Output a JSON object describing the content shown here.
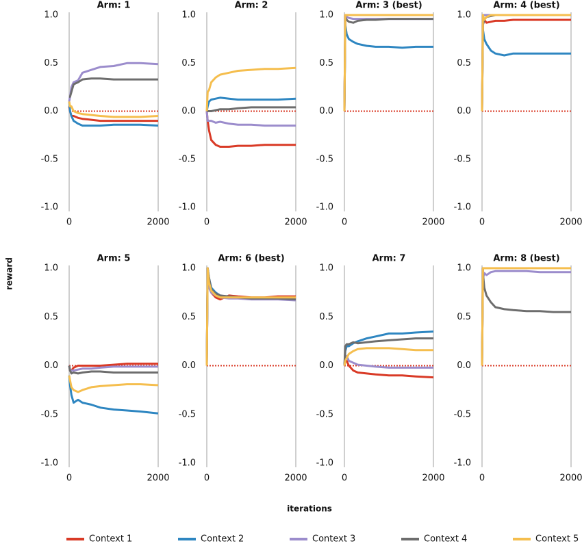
{
  "y_label": "reward",
  "x_label": "iterations",
  "chart_data": [
    {
      "type": "line",
      "title": "Arm: 1",
      "x": [
        0,
        20,
        50,
        100,
        200,
        300,
        500,
        700,
        1000,
        1300,
        1600,
        2000
      ],
      "xlim": [
        0,
        2000
      ],
      "ylim": [
        -1,
        1
      ],
      "xticks": [
        0,
        2000
      ],
      "yticks": [
        {
          "value": -1,
          "label": "-1.0"
        },
        -0.5,
        {
          "value": 0,
          "label": "0.0"
        },
        0.5,
        {
          "value": 1,
          "label": "1.0"
        }
      ],
      "grid": "x",
      "hline": 0,
      "hline_color": "#d93a26",
      "series": [
        {
          "name": "Context 1",
          "color": "#d93a26",
          "values": [
            0.05,
            0,
            -0.05,
            -0.05,
            -0.07,
            -0.08,
            -0.09,
            -0.1,
            -0.1,
            -0.1,
            -0.1,
            -0.1
          ]
        },
        {
          "name": "Context 2",
          "color": "#2e86c1",
          "values": [
            0.1,
            0,
            -0.05,
            -0.1,
            -0.13,
            -0.15,
            -0.15,
            -0.15,
            -0.14,
            -0.14,
            -0.14,
            -0.15
          ]
        },
        {
          "name": "Context 3",
          "color": "#9b8ccc",
          "values": [
            0.1,
            0.15,
            0.25,
            0.3,
            0.32,
            0.4,
            0.43,
            0.46,
            0.47,
            0.5,
            0.5,
            0.49
          ]
        },
        {
          "name": "Context 4",
          "color": "#6d6d6d",
          "values": [
            0.15,
            0.15,
            0.2,
            0.28,
            0.3,
            0.33,
            0.34,
            0.34,
            0.33,
            0.33,
            0.33,
            0.33
          ]
        },
        {
          "name": "Context 5",
          "color": "#f5be4e",
          "values": [
            0.1,
            0.05,
            0.05,
            0,
            -0.02,
            -0.03,
            -0.04,
            -0.05,
            -0.06,
            -0.06,
            -0.06,
            -0.05
          ]
        }
      ]
    },
    {
      "type": "line",
      "title": "Arm: 2",
      "x": [
        0,
        20,
        50,
        100,
        200,
        300,
        500,
        700,
        1000,
        1300,
        1600,
        2000
      ],
      "xlim": [
        0,
        2000
      ],
      "ylim": [
        -1,
        1
      ],
      "xticks": [
        0,
        2000
      ],
      "yticks": [
        {
          "value": -1,
          "label": "-1.0"
        },
        -0.5,
        {
          "value": 0,
          "label": "0.0"
        },
        0.5,
        {
          "value": 1,
          "label": "1.0"
        }
      ],
      "grid": "x",
      "hline": 0,
      "hline_color": "#d93a26",
      "series": [
        {
          "name": "Context 1",
          "color": "#d93a26",
          "values": [
            0,
            -0.1,
            -0.2,
            -0.3,
            -0.35,
            -0.37,
            -0.37,
            -0.36,
            -0.36,
            -0.35,
            -0.35,
            -0.35
          ]
        },
        {
          "name": "Context 2",
          "color": "#2e86c1",
          "values": [
            0,
            0.05,
            0.1,
            0.12,
            0.13,
            0.14,
            0.13,
            0.12,
            0.12,
            0.12,
            0.12,
            0.13
          ]
        },
        {
          "name": "Context 3",
          "color": "#9b8ccc",
          "values": [
            0,
            -0.1,
            -0.1,
            -0.1,
            -0.12,
            -0.11,
            -0.13,
            -0.14,
            -0.14,
            -0.15,
            -0.15,
            -0.15
          ]
        },
        {
          "name": "Context 4",
          "color": "#6d6d6d",
          "values": [
            0,
            0,
            0,
            0,
            0.01,
            0.02,
            0.02,
            0.03,
            0.04,
            0.04,
            0.04,
            0.04
          ]
        },
        {
          "name": "Context 5",
          "color": "#f5be4e",
          "values": [
            0,
            0.2,
            0.22,
            0.3,
            0.35,
            0.38,
            0.4,
            0.42,
            0.43,
            0.44,
            0.44,
            0.45
          ]
        }
      ]
    },
    {
      "type": "line",
      "title": "Arm: 3 (best)",
      "x": [
        0,
        20,
        50,
        100,
        200,
        300,
        500,
        700,
        1000,
        1300,
        1600,
        2000
      ],
      "xlim": [
        0,
        2000
      ],
      "ylim": [
        -1,
        1
      ],
      "xticks": [
        0,
        2000
      ],
      "yticks": [
        {
          "value": -1,
          "label": "-1.0"
        },
        -0.5,
        {
          "value": 0,
          "label": "0.0"
        },
        0.5,
        {
          "value": 1,
          "label": "1.0"
        }
      ],
      "grid": "x",
      "hline": 0,
      "hline_color": "#d93a26",
      "series": [
        {
          "name": "Context 1",
          "color": "#d93a26",
          "values": [
            0,
            1,
            1,
            1,
            1,
            1,
            1,
            1,
            1,
            1,
            1,
            1
          ]
        },
        {
          "name": "Context 2",
          "color": "#2e86c1",
          "values": [
            0,
            0.9,
            0.8,
            0.75,
            0.72,
            0.7,
            0.68,
            0.67,
            0.67,
            0.66,
            0.67,
            0.67
          ]
        },
        {
          "name": "Context 3",
          "color": "#9b8ccc",
          "values": [
            0,
            1,
            0.98,
            0.97,
            0.96,
            0.96,
            0.96,
            0.96,
            0.96,
            0.96,
            0.96,
            0.96
          ]
        },
        {
          "name": "Context 4",
          "color": "#6d6d6d",
          "values": [
            0,
            0.98,
            0.95,
            0.93,
            0.92,
            0.94,
            0.95,
            0.95,
            0.96,
            0.96,
            0.96,
            0.96
          ]
        },
        {
          "name": "Context 5",
          "color": "#f5be4e",
          "values": [
            0,
            1,
            1,
            1,
            1,
            1,
            1,
            1,
            1,
            1,
            1,
            1
          ]
        }
      ]
    },
    {
      "type": "line",
      "title": "Arm: 4 (best)",
      "x": [
        0,
        20,
        50,
        100,
        200,
        300,
        500,
        700,
        1000,
        1300,
        1600,
        2000
      ],
      "xlim": [
        0,
        2000
      ],
      "ylim": [
        -1,
        1
      ],
      "xticks": [
        0,
        2000
      ],
      "yticks": [
        {
          "value": -1,
          "label": "-1.0"
        },
        -0.5,
        {
          "value": 0,
          "label": "0.0"
        },
        0.5,
        {
          "value": 1,
          "label": "1.0"
        }
      ],
      "grid": "x",
      "hline": 0,
      "hline_color": "#d93a26",
      "series": [
        {
          "name": "Context 1",
          "color": "#d93a26",
          "values": [
            0,
            0.9,
            0.95,
            0.92,
            0.93,
            0.94,
            0.94,
            0.95,
            0.95,
            0.95,
            0.95,
            0.95
          ]
        },
        {
          "name": "Context 2",
          "color": "#2e86c1",
          "values": [
            0,
            0.85,
            0.75,
            0.7,
            0.63,
            0.6,
            0.58,
            0.6,
            0.6,
            0.6,
            0.6,
            0.6
          ]
        },
        {
          "name": "Context 3",
          "color": "#9b8ccc",
          "values": [
            0,
            1,
            1,
            1,
            1,
            1,
            1,
            1,
            1,
            1,
            1,
            1
          ]
        },
        {
          "name": "Context 4",
          "color": "#6d6d6d",
          "values": [
            0,
            0.9,
            0.95,
            0.98,
            0.99,
            1,
            1,
            1,
            1,
            1,
            1,
            1
          ]
        },
        {
          "name": "Context 5",
          "color": "#f5be4e",
          "values": [
            0,
            1,
            0.95,
            0.98,
            1,
            1,
            1,
            1,
            1,
            1,
            1,
            1
          ]
        }
      ]
    },
    {
      "type": "line",
      "title": "Arm: 5",
      "x": [
        0,
        20,
        50,
        100,
        200,
        300,
        500,
        700,
        1000,
        1300,
        1600,
        2000
      ],
      "xlim": [
        0,
        2000
      ],
      "ylim": [
        -1,
        1
      ],
      "xticks": [
        0,
        2000
      ],
      "yticks": [
        {
          "value": -1,
          "label": "-1.0"
        },
        -0.5,
        {
          "value": 0,
          "label": "0.0"
        },
        0.5,
        {
          "value": 1,
          "label": "1.0"
        }
      ],
      "grid": "x",
      "hline": 0,
      "hline_color": "#d93a26",
      "series": [
        {
          "name": "Context 1",
          "color": "#d93a26",
          "values": [
            0,
            -0.05,
            -0.05,
            -0.02,
            0,
            0,
            0,
            0,
            0.01,
            0.02,
            0.02,
            0.02
          ]
        },
        {
          "name": "Context 2",
          "color": "#2e86c1",
          "values": [
            -0.1,
            -0.2,
            -0.3,
            -0.38,
            -0.35,
            -0.38,
            -0.4,
            -0.43,
            -0.45,
            -0.46,
            -0.47,
            -0.49
          ]
        },
        {
          "name": "Context 3",
          "color": "#9b8ccc",
          "values": [
            0,
            -0.05,
            -0.05,
            -0.05,
            -0.04,
            -0.03,
            -0.03,
            -0.02,
            -0.01,
            -0.01,
            -0.01,
            -0.01
          ]
        },
        {
          "name": "Context 4",
          "color": "#6d6d6d",
          "values": [
            0,
            -0.05,
            -0.08,
            -0.07,
            -0.08,
            -0.07,
            -0.06,
            -0.06,
            -0.07,
            -0.07,
            -0.07,
            -0.07
          ]
        },
        {
          "name": "Context 5",
          "color": "#f5be4e",
          "values": [
            -0.1,
            -0.15,
            -0.22,
            -0.25,
            -0.27,
            -0.25,
            -0.22,
            -0.21,
            -0.2,
            -0.19,
            -0.19,
            -0.2
          ]
        }
      ]
    },
    {
      "type": "line",
      "title": "Arm: 6 (best)",
      "x": [
        0,
        20,
        50,
        100,
        200,
        300,
        500,
        700,
        1000,
        1300,
        1600,
        2000
      ],
      "xlim": [
        0,
        2000
      ],
      "ylim": [
        -1,
        1
      ],
      "xticks": [
        0,
        2000
      ],
      "yticks": [
        {
          "value": -1,
          "label": "-1.0"
        },
        -0.5,
        {
          "value": 0,
          "label": "0.0"
        },
        0.5,
        {
          "value": 1,
          "label": "1.0"
        }
      ],
      "grid": "x",
      "hline": 0,
      "hline_color": "#d93a26",
      "series": [
        {
          "name": "Context 1",
          "color": "#d93a26",
          "values": [
            0,
            1,
            0.85,
            0.75,
            0.7,
            0.68,
            0.72,
            0.71,
            0.7,
            0.7,
            0.71,
            0.71
          ]
        },
        {
          "name": "Context 2",
          "color": "#2e86c1",
          "values": [
            0,
            1,
            0.9,
            0.8,
            0.75,
            0.72,
            0.7,
            0.7,
            0.69,
            0.69,
            0.69,
            0.69
          ]
        },
        {
          "name": "Context 3",
          "color": "#9b8ccc",
          "values": [
            0,
            0.95,
            0.8,
            0.75,
            0.72,
            0.7,
            0.69,
            0.69,
            0.68,
            0.68,
            0.68,
            0.67
          ]
        },
        {
          "name": "Context 4",
          "color": "#6d6d6d",
          "values": [
            0,
            1,
            0.9,
            0.78,
            0.74,
            0.72,
            0.71,
            0.7,
            0.69,
            0.69,
            0.69,
            0.68
          ]
        },
        {
          "name": "Context 5",
          "color": "#f5be4e",
          "values": [
            0,
            1,
            0.85,
            0.77,
            0.72,
            0.7,
            0.7,
            0.7,
            0.7,
            0.7,
            0.7,
            0.7
          ]
        }
      ]
    },
    {
      "type": "line",
      "title": "Arm: 7",
      "x": [
        0,
        20,
        50,
        100,
        200,
        300,
        500,
        700,
        1000,
        1300,
        1600,
        2000
      ],
      "xlim": [
        0,
        2000
      ],
      "ylim": [
        -1,
        1
      ],
      "xticks": [
        0,
        2000
      ],
      "yticks": [
        {
          "value": -1,
          "label": "-1.0"
        },
        -0.5,
        {
          "value": 0,
          "label": "0.0"
        },
        0.5,
        {
          "value": 1,
          "label": "1.0"
        }
      ],
      "grid": "x",
      "hline": 0,
      "hline_color": "#d93a26",
      "series": [
        {
          "name": "Context 1",
          "color": "#d93a26",
          "values": [
            0,
            0.05,
            0.05,
            0,
            -0.05,
            -0.07,
            -0.08,
            -0.09,
            -0.1,
            -0.1,
            -0.11,
            -0.12
          ]
        },
        {
          "name": "Context 2",
          "color": "#2e86c1",
          "values": [
            0,
            0.15,
            0.2,
            0.2,
            0.23,
            0.25,
            0.28,
            0.3,
            0.33,
            0.33,
            0.34,
            0.35
          ]
        },
        {
          "name": "Context 3",
          "color": "#9b8ccc",
          "values": [
            0,
            0.1,
            0.1,
            0.05,
            0.03,
            0.01,
            0,
            -0.01,
            -0.02,
            -0.02,
            -0.02,
            -0.02
          ]
        },
        {
          "name": "Context 4",
          "color": "#6d6d6d",
          "values": [
            0,
            0.2,
            0.22,
            0.22,
            0.24,
            0.23,
            0.24,
            0.25,
            0.26,
            0.27,
            0.28,
            0.28
          ]
        },
        {
          "name": "Context 5",
          "color": "#f5be4e",
          "values": [
            0,
            0.05,
            0.08,
            0.12,
            0.15,
            0.17,
            0.18,
            0.18,
            0.18,
            0.17,
            0.16,
            0.16
          ]
        }
      ]
    },
    {
      "type": "line",
      "title": "Arm: 8 (best)",
      "x": [
        0,
        20,
        50,
        100,
        200,
        300,
        500,
        700,
        1000,
        1300,
        1600,
        2000
      ],
      "xlim": [
        0,
        2000
      ],
      "ylim": [
        -1,
        1
      ],
      "xticks": [
        0,
        2000
      ],
      "yticks": [
        {
          "value": -1,
          "label": "-1.0"
        },
        -0.5,
        {
          "value": 0,
          "label": "0.0"
        },
        0.5,
        {
          "value": 1,
          "label": "1.0"
        }
      ],
      "grid": "x",
      "hline": 0,
      "hline_color": "#d93a26",
      "series": [
        {
          "name": "Context 1",
          "color": "#d93a26",
          "values": [
            0,
            1,
            1,
            1,
            1,
            1,
            1,
            1,
            1,
            1,
            1,
            1
          ]
        },
        {
          "name": "Context 2",
          "color": "#2e86c1",
          "values": [
            0,
            1,
            1,
            1,
            1,
            1,
            1,
            1,
            1,
            1,
            1,
            1
          ]
        },
        {
          "name": "Context 3",
          "color": "#9b8ccc",
          "values": [
            0,
            0.9,
            0.95,
            0.93,
            0.96,
            0.97,
            0.97,
            0.97,
            0.97,
            0.96,
            0.96,
            0.96
          ]
        },
        {
          "name": "Context 4",
          "color": "#6d6d6d",
          "values": [
            0,
            0.95,
            0.8,
            0.72,
            0.65,
            0.6,
            0.58,
            0.57,
            0.56,
            0.56,
            0.55,
            0.55
          ]
        },
        {
          "name": "Context 5",
          "color": "#f5be4e",
          "values": [
            0,
            1,
            1,
            1,
            1,
            1,
            1,
            1,
            1,
            1,
            1,
            1
          ]
        }
      ]
    }
  ]
}
